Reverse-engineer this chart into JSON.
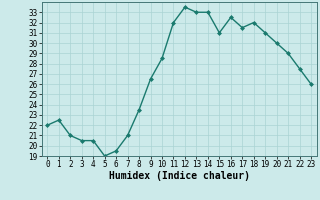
{
  "x": [
    0,
    1,
    2,
    3,
    4,
    5,
    6,
    7,
    8,
    9,
    10,
    11,
    12,
    13,
    14,
    15,
    16,
    17,
    18,
    19,
    20,
    21,
    22,
    23
  ],
  "y": [
    22,
    22.5,
    21,
    20.5,
    20.5,
    19,
    19.5,
    21,
    23.5,
    26.5,
    28.5,
    32,
    33.5,
    33,
    33,
    31,
    32.5,
    31.5,
    32,
    31,
    30,
    29,
    27.5,
    26
  ],
  "line_color": "#1a7a6e",
  "marker": "D",
  "marker_size": 2.0,
  "bg_color": "#cceaea",
  "grid_color": "#aad4d4",
  "xlabel": "Humidex (Indice chaleur)",
  "ylim": [
    19,
    34
  ],
  "xlim": [
    -0.5,
    23.5
  ],
  "yticks": [
    19,
    20,
    21,
    22,
    23,
    24,
    25,
    26,
    27,
    28,
    29,
    30,
    31,
    32,
    33
  ],
  "xticks": [
    0,
    1,
    2,
    3,
    4,
    5,
    6,
    7,
    8,
    9,
    10,
    11,
    12,
    13,
    14,
    15,
    16,
    17,
    18,
    19,
    20,
    21,
    22,
    23
  ],
  "tick_fontsize": 5.5,
  "label_fontsize": 7,
  "line_width": 1.0
}
